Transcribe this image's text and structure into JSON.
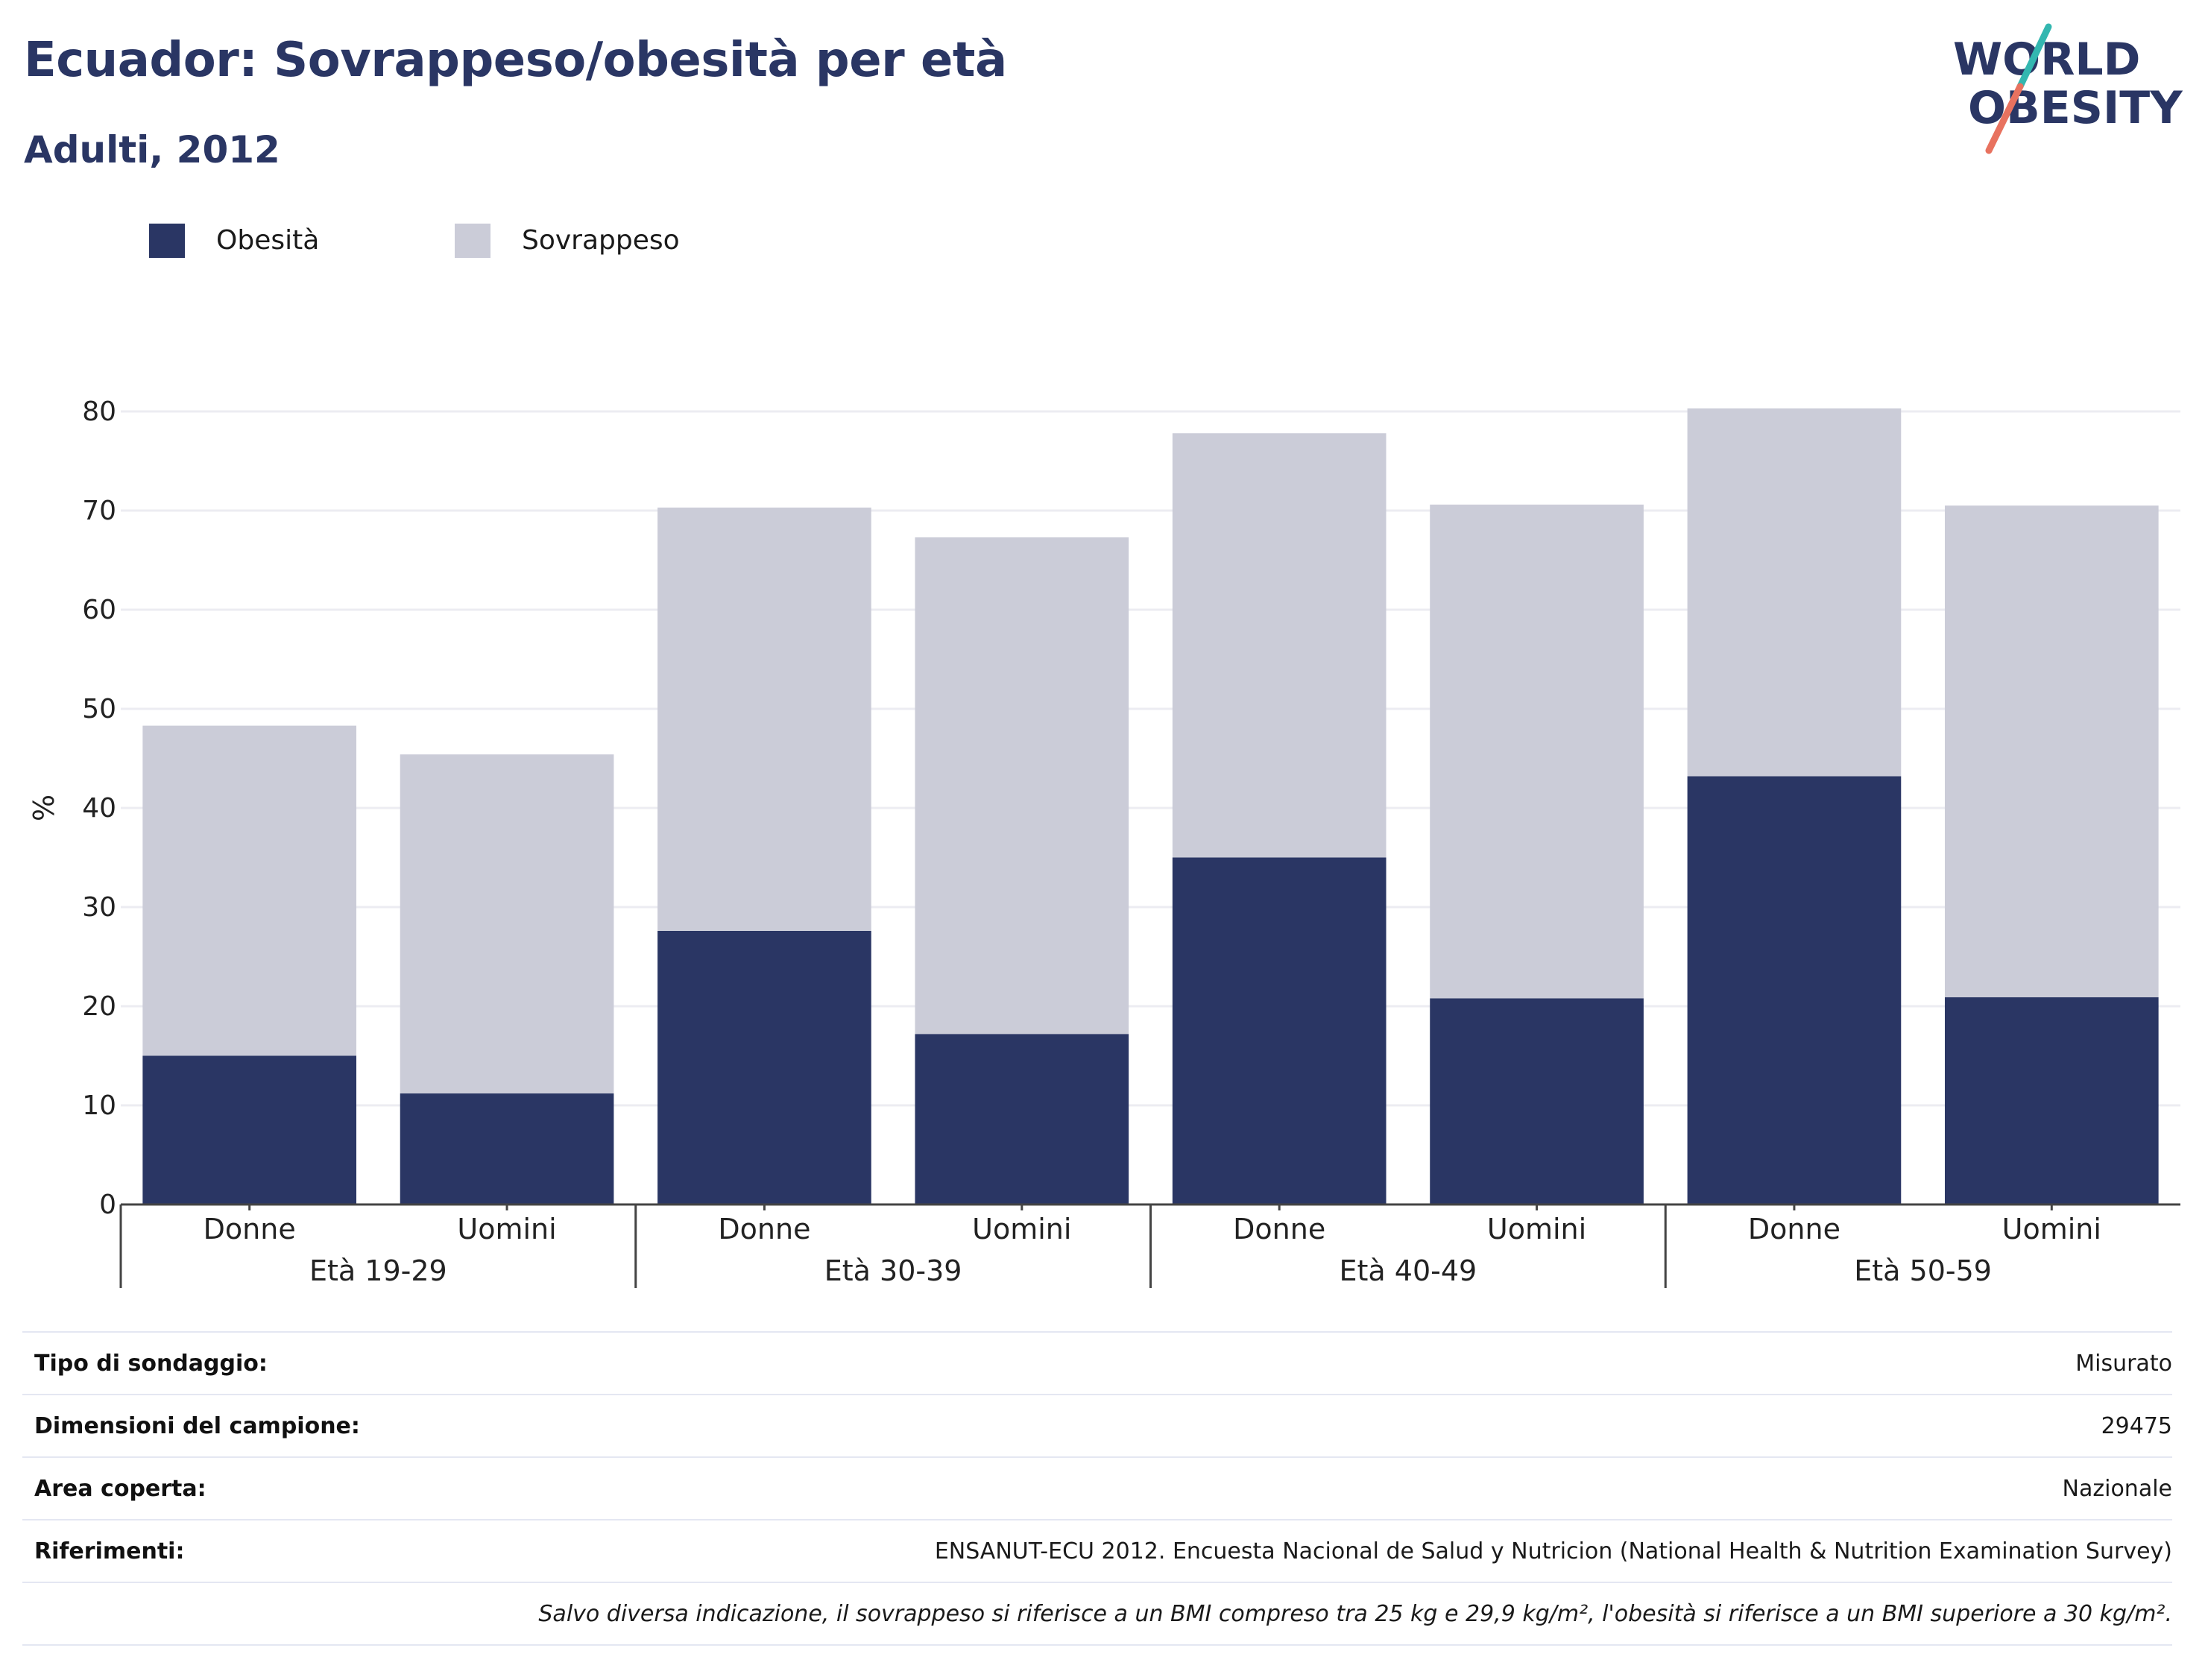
{
  "header": {
    "title": "Ecuador: Sovrappeso/obesità per età",
    "subtitle": "Adulti, 2012"
  },
  "logo": {
    "line1": "WORLD",
    "line2": "OBESITY"
  },
  "colors": {
    "obesity": "#2a3664",
    "overweight": "#cbccd8",
    "title": "#2a3664",
    "grid": "#ececf2",
    "axis": "#444444",
    "logo_teal": "#33b7b0",
    "logo_coral": "#e8725f"
  },
  "chart_data": {
    "type": "bar",
    "stacked": true,
    "ylabel": "%",
    "ylim": [
      0,
      80
    ],
    "yticks": [
      0,
      10,
      20,
      30,
      40,
      50,
      60,
      70,
      80
    ],
    "grid": true,
    "legend_position": "top-left",
    "groups": [
      "Età 19-29",
      "Età 30-39",
      "Età 40-49",
      "Età 50-59"
    ],
    "categories": [
      "Donne",
      "Uomini",
      "Donne",
      "Uomini",
      "Donne",
      "Uomini",
      "Donne",
      "Uomini"
    ],
    "series": [
      {
        "name": "Obesità",
        "values": [
          15.0,
          11.2,
          27.6,
          17.2,
          35.0,
          20.8,
          43.2,
          20.9
        ]
      },
      {
        "name": "Sovrappeso",
        "values": [
          33.3,
          34.2,
          42.7,
          50.1,
          42.8,
          49.8,
          37.1,
          49.6
        ]
      }
    ]
  },
  "info": [
    {
      "key": "Tipo di sondaggio:",
      "value": "Misurato"
    },
    {
      "key": "Dimensioni del campione:",
      "value": "29475"
    },
    {
      "key": "Area coperta:",
      "value": "Nazionale"
    },
    {
      "key": "Riferimenti:",
      "value": "ENSANUT-ECU 2012. Encuesta Nacional de Salud y Nutricion (National Health & Nutrition Examination Survey)"
    },
    {
      "key": "",
      "value": "Salvo diversa indicazione, il sovrappeso si riferisce a un BMI compreso tra 25 kg e 29,9 kg/m², l'obesità si riferisce a un BMI superiore a 30 kg/m²."
    }
  ]
}
